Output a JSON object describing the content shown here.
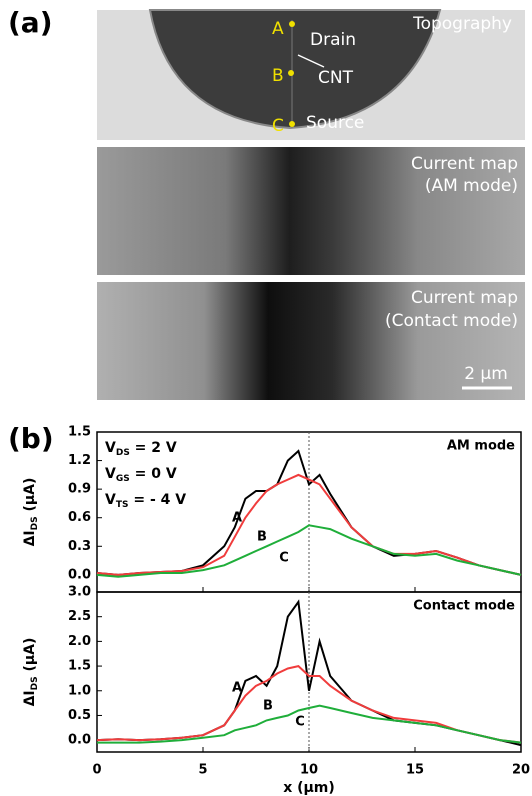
{
  "panel_a": {
    "label": "(a)",
    "images": [
      {
        "title": [
          "Topography"
        ],
        "points": [
          "A",
          "B",
          "C"
        ],
        "notes": [
          "Drain",
          "CNT",
          "Source"
        ]
      },
      {
        "title": [
          "Current map",
          "(AM mode)"
        ]
      },
      {
        "title": [
          "Current map",
          "(Contact mode)"
        ],
        "scale_bar": "2 μm"
      }
    ]
  },
  "panel_b": {
    "label": "(b)"
  },
  "chart_data": [
    {
      "type": "line",
      "title": "AM mode",
      "ylabel": {
        "main": "ΔI",
        "sub": "DS",
        "rest": " (μA)"
      },
      "annotations": [
        {
          "main": "V",
          "sub": "DS",
          "rest": " = 2 V"
        },
        {
          "main": "V",
          "sub": "GS",
          "rest": " = 0 V"
        },
        {
          "main": "V",
          "sub": "TS",
          "rest": " = - 4 V"
        }
      ],
      "x": [
        0,
        1,
        2,
        3,
        4,
        5,
        6,
        6.5,
        7,
        7.5,
        8,
        8.5,
        9,
        9.5,
        10,
        10.5,
        11,
        12,
        13,
        14,
        15,
        16,
        17,
        18,
        19,
        20
      ],
      "series": [
        {
          "name": "A",
          "color": "#000000",
          "values": [
            0.02,
            0,
            0.02,
            0.03,
            0.04,
            0.1,
            0.3,
            0.5,
            0.8,
            0.88,
            0.88,
            0.95,
            1.2,
            1.3,
            0.95,
            1.05,
            0.85,
            0.5,
            0.3,
            0.2,
            0.22,
            0.25,
            0.18,
            0.1,
            0.05,
            0
          ]
        },
        {
          "name": "B",
          "color": "#f03c3c",
          "values": [
            0.02,
            0,
            0.02,
            0.03,
            0.04,
            0.08,
            0.2,
            0.4,
            0.6,
            0.75,
            0.88,
            0.95,
            1.0,
            1.05,
            1.0,
            0.95,
            0.8,
            0.5,
            0.3,
            0.22,
            0.22,
            0.25,
            0.18,
            0.1,
            0.05,
            0
          ]
        },
        {
          "name": "C",
          "color": "#1fae3a",
          "values": [
            0,
            -0.02,
            0,
            0.02,
            0.02,
            0.05,
            0.1,
            0.15,
            0.2,
            0.25,
            0.3,
            0.35,
            0.4,
            0.45,
            0.52,
            0.5,
            0.48,
            0.38,
            0.3,
            0.22,
            0.2,
            0.22,
            0.15,
            0.1,
            0.05,
            0
          ]
        }
      ],
      "xlim": [
        0,
        20
      ],
      "xticks": [
        0,
        5,
        10,
        15,
        20
      ],
      "vline": 10,
      "ylim": [
        -0.18,
        1.5
      ],
      "yticks": [
        {
          "value": 0,
          "label": "0.0"
        },
        0.3,
        0.6,
        0.9,
        1.2,
        1.5
      ]
    },
    {
      "type": "line",
      "title": "Contact mode",
      "ylabel": {
        "main": "ΔI",
        "sub": "DS",
        "rest": " (μA)"
      },
      "xlabel": "x (μm)",
      "x": [
        0,
        1,
        2,
        3,
        4,
        5,
        6,
        6.5,
        7,
        7.5,
        8,
        8.5,
        9,
        9.5,
        10,
        10.5,
        11,
        12,
        13,
        14,
        15,
        16,
        17,
        18,
        19,
        20
      ],
      "series": [
        {
          "name": "A",
          "color": "#000000",
          "values": [
            0,
            0.02,
            0,
            0.02,
            0.05,
            0.1,
            0.3,
            0.6,
            1.2,
            1.3,
            1.1,
            1.5,
            2.5,
            2.8,
            1.0,
            2.0,
            1.3,
            0.8,
            0.6,
            0.4,
            0.35,
            0.3,
            0.2,
            0.1,
            0,
            -0.1
          ]
        },
        {
          "name": "B",
          "color": "#f03c3c",
          "values": [
            0,
            0.02,
            0,
            0.02,
            0.05,
            0.1,
            0.3,
            0.6,
            0.9,
            1.1,
            1.2,
            1.35,
            1.45,
            1.5,
            1.3,
            1.3,
            1.1,
            0.8,
            0.6,
            0.45,
            0.4,
            0.35,
            0.2,
            0.1,
            0,
            -0.05
          ]
        },
        {
          "name": "C",
          "color": "#1fae3a",
          "values": [
            -0.05,
            -0.05,
            -0.05,
            -0.03,
            0,
            0.05,
            0.1,
            0.2,
            0.25,
            0.3,
            0.4,
            0.45,
            0.5,
            0.6,
            0.65,
            0.7,
            0.65,
            0.55,
            0.45,
            0.4,
            0.35,
            0.3,
            0.2,
            0.1,
            0,
            -0.05
          ]
        }
      ],
      "xlim": [
        0,
        20
      ],
      "xticks": [
        0,
        5,
        10,
        15,
        20
      ],
      "vline": 10,
      "ylim": [
        -0.24,
        3.0
      ],
      "yticks": [
        {
          "value": 0,
          "label": "0.0"
        },
        0.5,
        {
          "value": 1,
          "label": "1.0"
        },
        1.5,
        {
          "value": 2,
          "label": "2.0"
        },
        2.5,
        {
          "value": 3,
          "label": "3.0"
        }
      ]
    }
  ]
}
